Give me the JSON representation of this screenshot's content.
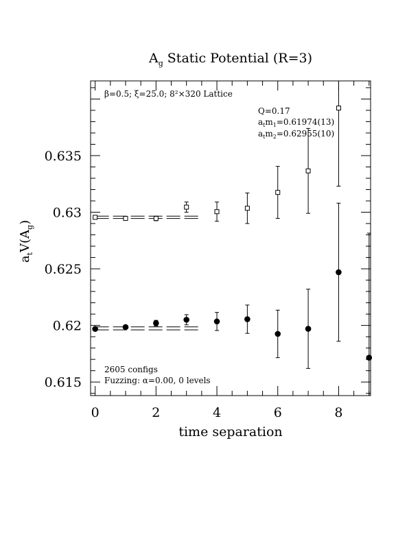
{
  "chart_data": {
    "type": "scatter",
    "title": "A",
    "title_sub": "g",
    "title_rest": " Static Potential (R=3)",
    "xlabel": "time separation",
    "ylabel": {
      "a": "a",
      "a_sub": "t",
      "v": "V(A",
      "v_sub": "g",
      "close": ")"
    },
    "xlim": [
      -0.15,
      9.05
    ],
    "ylim": [
      0.6138,
      0.6416
    ],
    "x_ticks": [
      0,
      2,
      4,
      6,
      8
    ],
    "x_tick_labels": [
      "0",
      "2",
      "4",
      "6",
      "8"
    ],
    "y_ticks": [
      0.615,
      0.62,
      0.625,
      0.63,
      0.635
    ],
    "y_tick_labels": [
      "0.615",
      "0.62",
      "0.625",
      "0.63",
      "0.635"
    ],
    "annotations": {
      "lattice": "β=0.5; ξ=25.0; 8²×320 Lattice",
      "q": "Q=0.17",
      "m1": {
        "a": "a",
        "a_sub": "t",
        "m": "m",
        "m_sub": "1",
        "val": "=0.61974(13)"
      },
      "m2": {
        "a": "a",
        "a_sub": "t",
        "m": "m",
        "m_sub": "2",
        "val": "=0.62955(10)"
      },
      "configs": "2605 configs",
      "fuzzing": "Fuzzing: α=0.00, 0 levels"
    },
    "series": [
      {
        "marker": "circle-filled",
        "points": [
          {
            "x": 0,
            "y": 0.61969,
            "err": 0.0001
          },
          {
            "x": 1,
            "y": 0.61985,
            "err": 0.00012
          },
          {
            "x": 2,
            "y": 0.6202,
            "err": 0.00025
          },
          {
            "x": 3,
            "y": 0.6205,
            "err": 0.00045
          },
          {
            "x": 4,
            "y": 0.62035,
            "err": 0.0008
          },
          {
            "x": 5,
            "y": 0.62055,
            "err": 0.00125
          },
          {
            "x": 6,
            "y": 0.61925,
            "err": 0.0021
          },
          {
            "x": 7,
            "y": 0.6197,
            "err": 0.0035
          },
          {
            "x": 8,
            "y": 0.6247,
            "err": 0.0061
          },
          {
            "x": 9,
            "y": 0.61715,
            "err": 0.011
          }
        ],
        "fit": {
          "x_range": [
            0,
            3.5
          ],
          "value": 0.61974,
          "err": 0.00013
        }
      },
      {
        "marker": "square-open",
        "points": [
          {
            "x": 0,
            "y": 0.62955,
            "err": 0.0001
          },
          {
            "x": 1,
            "y": 0.62945,
            "err": 0.0001
          },
          {
            "x": 2,
            "y": 0.62945,
            "err": 0.0002
          },
          {
            "x": 3,
            "y": 0.63045,
            "err": 0.00045
          },
          {
            "x": 4,
            "y": 0.63005,
            "err": 0.00085
          },
          {
            "x": 5,
            "y": 0.63035,
            "err": 0.00135
          },
          {
            "x": 6,
            "y": 0.63175,
            "err": 0.0023
          },
          {
            "x": 7,
            "y": 0.63365,
            "err": 0.00375
          },
          {
            "x": 8,
            "y": 0.6392,
            "err": 0.0069
          }
        ],
        "fit": {
          "x_range": [
            0,
            3.5
          ],
          "value": 0.62955,
          "err": 0.0001
        }
      }
    ]
  }
}
